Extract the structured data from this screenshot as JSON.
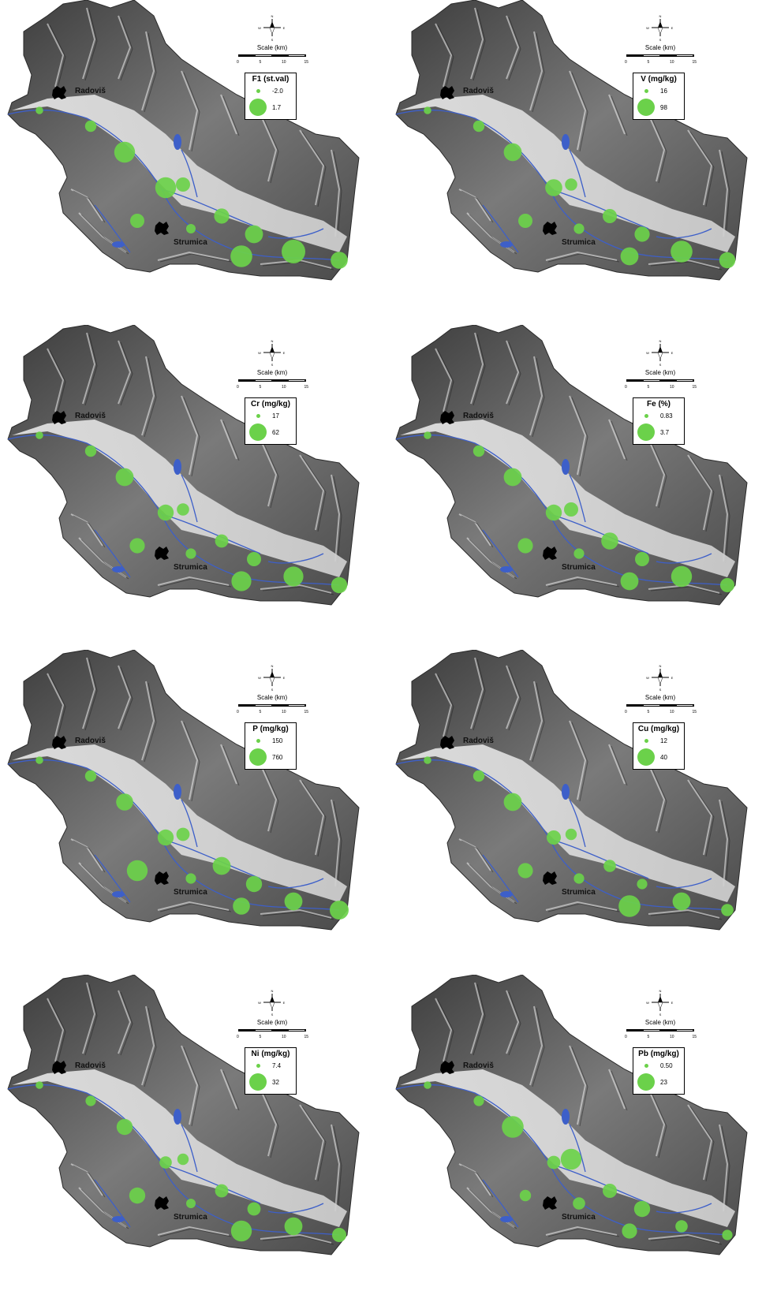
{
  "towns": {
    "north": "Radoviš",
    "south": "Strumica"
  },
  "scale": {
    "label": "Scale (km)",
    "ticks": [
      "0",
      "5",
      "10",
      "15"
    ]
  },
  "compass": {
    "n": "N",
    "s": "S",
    "e": "E",
    "w": "W"
  },
  "colors": {
    "symbol": "#6bd14a",
    "town": "#000000",
    "river": "#3d5fc9"
  },
  "panels": [
    {
      "legend_title": "F1 (st.val)",
      "min_label": "-2.0",
      "max_label": "1.7",
      "sites": [
        0.15,
        0.35,
        0.85,
        0.85,
        0.5,
        0.5,
        0.55,
        0.25,
        0.7,
        0.9,
        1.0,
        0.65
      ]
    },
    {
      "legend_title": "V (mg/kg)",
      "min_label": "16",
      "max_label": "98",
      "sites": [
        0.15,
        0.35,
        0.7,
        0.65,
        0.4,
        0.5,
        0.5,
        0.3,
        0.55,
        0.7,
        0.9,
        0.6
      ]
    },
    {
      "legend_title": "Cr (mg/kg)",
      "min_label": "17",
      "max_label": "62",
      "sites": [
        0.15,
        0.35,
        0.7,
        0.6,
        0.4,
        0.55,
        0.45,
        0.3,
        0.5,
        0.8,
        0.8,
        0.6
      ]
    },
    {
      "legend_title": "Fe (%)",
      "min_label": "0.83",
      "max_label": "3.7",
      "sites": [
        0.15,
        0.35,
        0.7,
        0.6,
        0.5,
        0.55,
        0.65,
        0.3,
        0.5,
        0.7,
        0.85,
        0.5
      ]
    },
    {
      "legend_title": "P (mg/kg)",
      "min_label": "150",
      "max_label": "760",
      "sites": [
        0.15,
        0.35,
        0.65,
        0.6,
        0.45,
        0.85,
        0.7,
        0.3,
        0.6,
        0.65,
        0.7,
        0.75
      ]
    },
    {
      "legend_title": "Cu (mg/kg)",
      "min_label": "12",
      "max_label": "40",
      "sites": [
        0.15,
        0.35,
        0.7,
        0.5,
        0.35,
        0.55,
        0.4,
        0.3,
        0.3,
        0.9,
        0.7,
        0.4
      ]
    },
    {
      "legend_title": "Ni (mg/kg)",
      "min_label": "7.4",
      "max_label": "32",
      "sites": [
        0.15,
        0.3,
        0.6,
        0.4,
        0.35,
        0.6,
        0.45,
        0.25,
        0.45,
        0.85,
        0.7,
        0.5
      ]
    },
    {
      "legend_title": "Pb (mg/kg)",
      "min_label": "0.50",
      "max_label": "23",
      "sites": [
        0.15,
        0.3,
        0.9,
        0.45,
        0.85,
        0.35,
        0.5,
        0.4,
        0.6,
        0.55,
        0.4,
        0.3
      ]
    }
  ]
}
